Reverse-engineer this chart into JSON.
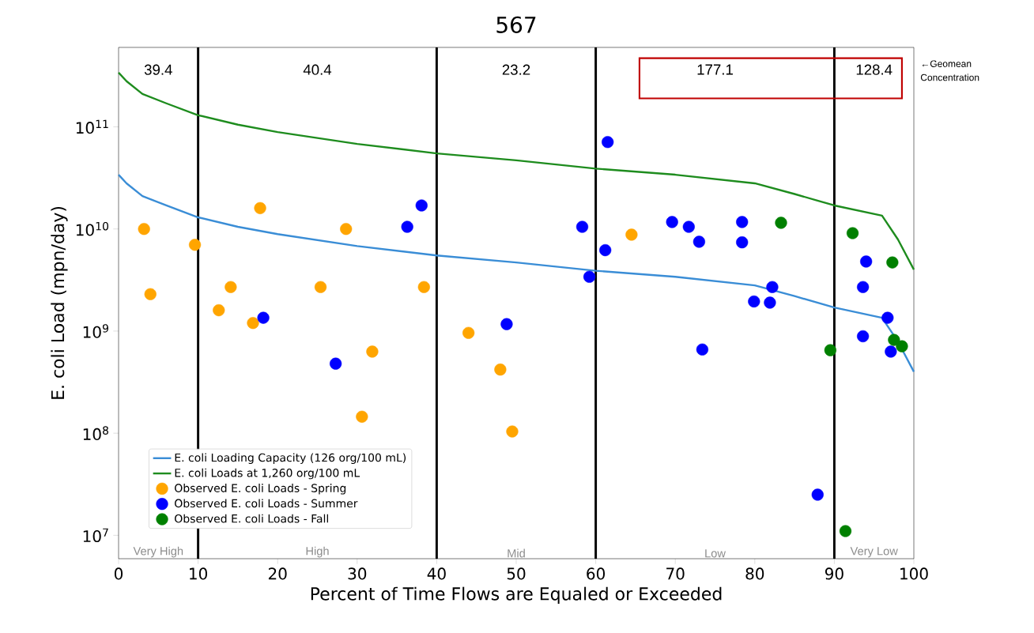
{
  "chart_data": {
    "type": "scatter",
    "title": "567",
    "xlabel": "Percent of Time Flows are Equaled or Exceeded",
    "ylabel": "E. coli Load (mpn/day)",
    "xlim": [
      0,
      100
    ],
    "ylim": [
      5900000.0,
      600000000000.0
    ],
    "log": "y",
    "legend": "bottom left",
    "xticks": [
      0,
      10,
      20,
      30,
      40,
      50,
      60,
      70,
      80,
      90,
      100
    ],
    "yticks": [
      {
        "value": 10000000.0,
        "label": "10$^{7}$"
      },
      {
        "value": 100000000.0,
        "label": "10$^{8}$"
      },
      {
        "value": 1000000000.0,
        "label": "10$^{9}$"
      },
      {
        "value": 10000000000.0,
        "label": "10$^{10}$"
      },
      {
        "value": 100000000000.0,
        "label": "10$^{11}$"
      }
    ],
    "ref_lines": [
      {
        "axis": "x",
        "value": 10,
        "color": "#000000"
      },
      {
        "axis": "x",
        "value": 40,
        "color": "#000000"
      },
      {
        "axis": "x",
        "value": 60,
        "color": "#000000"
      },
      {
        "axis": "x",
        "value": 90,
        "color": "#000000"
      }
    ],
    "annotations": [
      "39.4",
      "40.4",
      "23.2",
      "177.1",
      "128.4",
      "Very High",
      "High",
      "Mid",
      "Low",
      "Very Low",
      "←Geomean Concentration"
    ],
    "series": [
      {
        "name": "E. coli Loading Capacity (126 org/100 mL)",
        "type": "line",
        "color": "#3a8dd6",
        "marker": "none",
        "x": [
          0,
          1,
          3,
          6,
          10,
          15,
          20,
          30,
          40,
          50,
          60,
          70,
          80,
          85,
          90,
          96,
          98,
          100
        ],
        "values": [
          34000000000.0,
          28000000000.0,
          21000000000.0,
          17000000000.0,
          13000000000.0,
          10500000000.0,
          8900000000.0,
          6800000000.0,
          5500000000.0,
          4700000000.0,
          3900000000.0,
          3400000000.0,
          2800000000.0,
          2200000000.0,
          1700000000.0,
          1350000000.0,
          790000000.0,
          400000000.0
        ]
      },
      {
        "name": "E. coli Loads at 1,260 org/100 mL",
        "type": "line",
        "color": "#1e8c1e",
        "marker": "none",
        "x": [
          0,
          1,
          3,
          6,
          10,
          15,
          20,
          30,
          40,
          50,
          60,
          70,
          80,
          85,
          90,
          96,
          98,
          100
        ],
        "values": [
          340000000000.0,
          280000000000.0,
          210000000000.0,
          170000000000.0,
          130000000000.0,
          105000000000.0,
          89000000000.0,
          68000000000.0,
          55000000000.0,
          47000000000.0,
          39000000000.0,
          34000000000.0,
          28000000000.0,
          22000000000.0,
          17000000000.0,
          13500000000.0,
          7900000000.0,
          4000000000.0
        ]
      },
      {
        "name": "Observed E. coli Loads - Spring",
        "type": "scatter",
        "color": "#ffa500",
        "marker": "circle",
        "x": [
          3.2,
          4.0,
          9.6,
          17.8,
          14.1,
          12.6,
          16.9,
          25.4,
          28.6,
          38.4,
          31.9,
          30.6,
          44.0,
          48.0,
          49.5,
          64.5
        ],
        "values": [
          10000000000.0,
          2300000000.0,
          7000000000.0,
          16000000000.0,
          2700000000.0,
          1600000000.0,
          1200000000.0,
          2700000000.0,
          10000000000.0,
          2700000000.0,
          630000000.0,
          145000000.0,
          960000000.0,
          420000000.0,
          104000000.0,
          8800000000.0
        ]
      },
      {
        "name": "Observed E. coli Loads - Summer",
        "type": "scatter",
        "color": "#0000ff",
        "marker": "circle",
        "x": [
          18.2,
          27.3,
          36.3,
          38.1,
          48.8,
          58.3,
          59.2,
          61.5,
          61.2,
          69.6,
          71.7,
          73.0,
          73.4,
          78.4,
          78.4,
          82.2,
          79.9,
          81.9,
          87.9,
          94.0,
          93.6,
          93.6,
          96.7,
          97.1
        ],
        "values": [
          1350000000.0,
          480000000.0,
          10500000000.0,
          17000000000.0,
          1170000000.0,
          10500000000.0,
          3400000000.0,
          71000000000.0,
          6200000000.0,
          11700000000.0,
          10500000000.0,
          7500000000.0,
          660000000.0,
          11700000000.0,
          7400000000.0,
          2700000000.0,
          1950000000.0,
          1900000000.0,
          25000000.0,
          4800000000.0,
          2700000000.0,
          890000000.0,
          1350000000.0,
          630000000.0
        ]
      },
      {
        "name": "Observed E. coli Loads - Fall",
        "type": "scatter",
        "color": "#008000",
        "marker": "circle",
        "x": [
          83.3,
          92.3,
          97.3,
          89.5,
          97.5,
          98.5,
          91.4
        ],
        "values": [
          11500000000.0,
          9100000000.0,
          4700000000.0,
          650000000.0,
          820000000.0,
          710000000.0,
          11000000.0
        ]
      }
    ]
  }
}
